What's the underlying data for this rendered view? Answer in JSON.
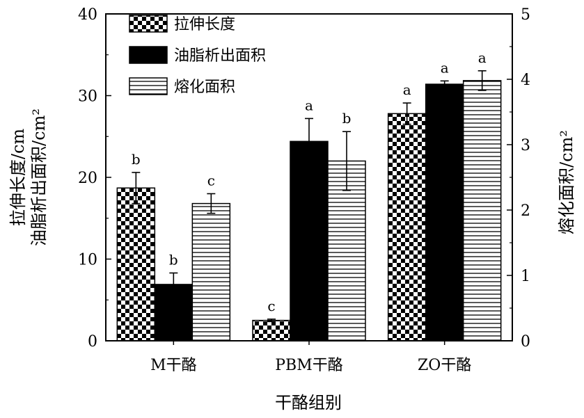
{
  "chart_data": {
    "type": "bar",
    "categories": [
      "M干酪",
      "PBM干酪",
      "ZO干酪"
    ],
    "xlabel": "干酪组别",
    "ylabel_left": [
      "拉伸长度/cm",
      "油脂析出面积/cm²"
    ],
    "ylabel_right": "熔化面积/cm²",
    "ylim_left": [
      0,
      40
    ],
    "ylim_right": [
      0,
      5
    ],
    "yticks_left": [
      "0",
      "10",
      "20",
      "30",
      "40"
    ],
    "yticks_right": [
      "0",
      "1",
      "2",
      "3",
      "4",
      "5"
    ],
    "legend_position": "top-left",
    "series": [
      {
        "name": "拉伸长度",
        "axis": "left",
        "pattern": "checker",
        "values": [
          18.7,
          2.5,
          27.8
        ],
        "errors": [
          1.9,
          0.15,
          1.3
        ],
        "labels": [
          "b",
          "c",
          "a"
        ]
      },
      {
        "name": "油脂析出面积",
        "axis": "left",
        "pattern": "solid",
        "values": [
          6.9,
          24.4,
          31.4
        ],
        "errors": [
          1.4,
          2.8,
          0.4
        ],
        "labels": [
          "b",
          "a",
          "a"
        ]
      },
      {
        "name": "熔化面积",
        "axis": "right",
        "pattern": "horizontal-lines",
        "values": [
          2.1,
          2.75,
          3.98
        ],
        "errors": [
          0.15,
          0.45,
          0.15
        ],
        "labels": [
          "c",
          "b",
          "a"
        ]
      }
    ]
  }
}
